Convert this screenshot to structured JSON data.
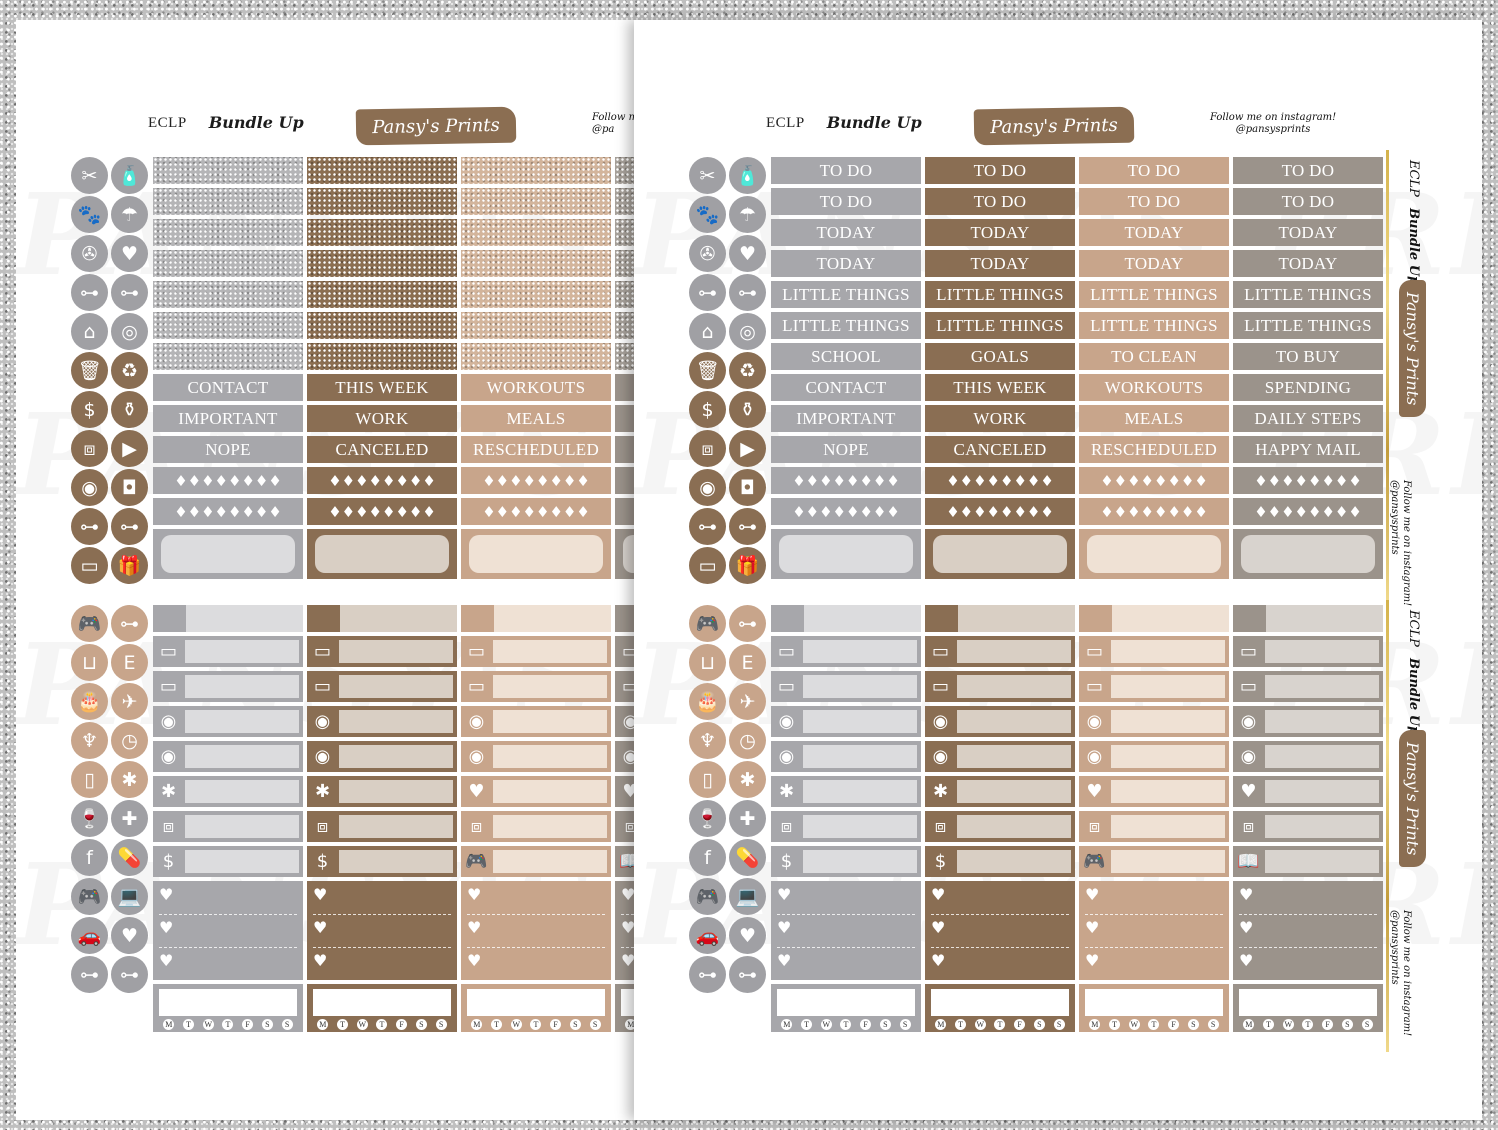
{
  "header": {
    "code": "ECLP",
    "title": "Bundle Up",
    "brand": "Pansy's Prints",
    "follow_line1": "Follow me on instagram!",
    "follow_handle": "@pansysprints",
    "follow_cut": "Follow m",
    "follow_handle_cut": "@pa"
  },
  "watermark": "PANSY'S PRINTS",
  "colors": {
    "gray": "#a7a7ab",
    "brown": "#8a6e53",
    "tan": "#c8a58b",
    "taupe": "#9b938b",
    "icon_brown": "#8a6e53",
    "icon_gray": "#a0a0a4"
  },
  "labels": {
    "left": [
      [
        "CONTACT",
        "IMPORTANT",
        "NOPE"
      ],
      [
        "THIS WEEK",
        "WORK",
        "CANCELED"
      ],
      [
        "WORKOUTS",
        "MEALS",
        "RESCHEDULED"
      ]
    ],
    "right": [
      [
        "TO DO",
        "TO DO",
        "TODAY",
        "TODAY",
        "LITTLE THINGS",
        "LITTLE THINGS",
        "SCHOOL",
        "CONTACT",
        "IMPORTANT",
        "NOPE"
      ],
      [
        "TO DO",
        "TO DO",
        "TODAY",
        "TODAY",
        "LITTLE THINGS",
        "LITTLE THINGS",
        "GOALS",
        "THIS WEEK",
        "WORK",
        "CANCELED"
      ],
      [
        "TO DO",
        "TO DO",
        "TODAY",
        "TODAY",
        "LITTLE THINGS",
        "LITTLE THINGS",
        "TO CLEAN",
        "WORKOUTS",
        "MEALS",
        "RESCHEDULED"
      ],
      [
        "TO DO",
        "TO DO",
        "TODAY",
        "TODAY",
        "LITTLE THINGS",
        "LITTLE THINGS",
        "TO BUY",
        "SPENDING",
        "DAILY STEPS",
        "HAPPY MAIL"
      ]
    ]
  },
  "weekdays": [
    "M",
    "T",
    "W",
    "T",
    "F",
    "S",
    "S"
  ],
  "icons_top": [
    "tools-icon",
    "spray-bottle-icon",
    "paw-icon",
    "watering-can-icon",
    "hair-dryer-icon",
    "book-heart-icon",
    "dumbbell-icon",
    "dumbbell-icon",
    "house-icon",
    "washer-icon",
    "trash-icon",
    "recycle-icon",
    "dollar-icon",
    "vacuum-icon",
    "box-icon",
    "youtube-icon",
    "plate-icon",
    "instagram-icon",
    "dumbbell-icon",
    "dumbbell-icon",
    "credit-card-icon",
    "gift-icon"
  ],
  "icons_bottom": [
    "gamepad-icon",
    "dumbbell-icon",
    "basket-icon",
    "letter-e-icon",
    "cake-icon",
    "airplane-icon",
    "tooth-icon",
    "clock-icon",
    "phone-heart-icon",
    "asterisk-icon",
    "wine-glasses-icon",
    "first-aid-icon",
    "facebook-icon",
    "pills-icon",
    "gamepad-icon",
    "laptop-icon",
    "car-icon",
    "heart-icon",
    "dumbbell-icon",
    "dumbbell-icon"
  ]
}
